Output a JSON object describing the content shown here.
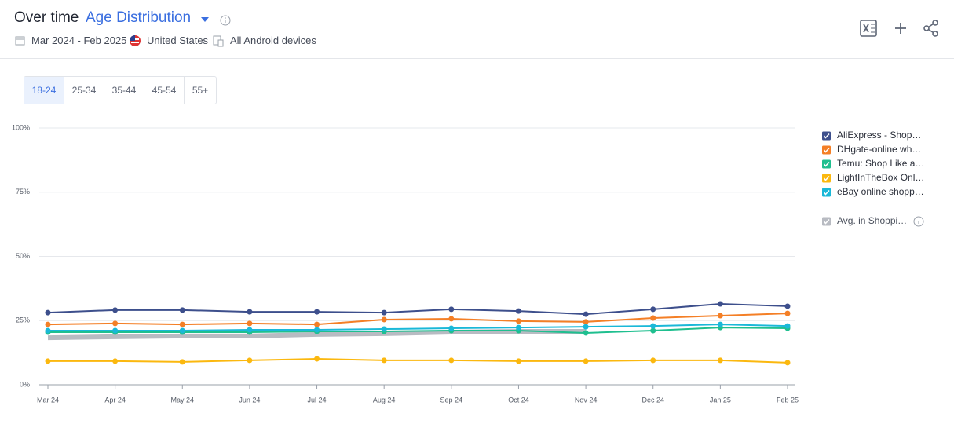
{
  "header": {
    "title": "Over time",
    "metric": "Age Distribution",
    "date_range": "Mar 2024 - Feb 2025",
    "country": "United States",
    "devices": "All Android devices"
  },
  "tabs": [
    "18-24",
    "25-34",
    "35-44",
    "45-54",
    "55+"
  ],
  "chart_data": {
    "type": "line",
    "categories": [
      "Mar 24",
      "Apr 24",
      "May 24",
      "Jun 24",
      "Jul 24",
      "Aug 24",
      "Sep 24",
      "Oct 24",
      "Nov 24",
      "Dec 24",
      "Jan 25",
      "Feb 25"
    ],
    "ylim": [
      0,
      100
    ],
    "yticks": [
      {
        "value": 0,
        "label": "0%"
      },
      {
        "value": 25,
        "label": "25%"
      },
      {
        "value": 50,
        "label": "50%"
      },
      {
        "value": 75,
        "label": "75%"
      },
      {
        "value": 100,
        "label": "100%"
      }
    ],
    "grid": true,
    "legend": "right",
    "series": [
      {
        "name": "AliExpress - Shop…",
        "color": "#3d4f8c",
        "values": [
          28.1,
          29.1,
          29.1,
          28.4,
          28.4,
          28.1,
          29.4,
          28.7,
          27.5,
          29.4,
          31.5,
          30.6
        ]
      },
      {
        "name": "DHgate-online wh…",
        "color": "#f47f26",
        "values": [
          23.5,
          23.9,
          23.5,
          23.9,
          23.5,
          25.4,
          25.7,
          24.8,
          24.5,
          26.0,
          26.9,
          27.8
        ]
      },
      {
        "name": "Temu: Shop Like a…",
        "color": "#1fbf8f",
        "values": [
          20.5,
          20.5,
          20.5,
          20.5,
          20.8,
          20.8,
          21.1,
          21.1,
          20.2,
          21.1,
          22.3,
          22.0
        ]
      },
      {
        "name": "LightInTheBox Onl…",
        "color": "#fbb80f",
        "values": [
          9.2,
          9.2,
          8.9,
          9.5,
          10.1,
          9.5,
          9.5,
          9.2,
          9.2,
          9.5,
          9.5,
          8.6
        ]
      },
      {
        "name": "eBay online shopp…",
        "color": "#1ab8d8",
        "values": [
          21.1,
          21.1,
          21.1,
          21.4,
          21.4,
          21.7,
          22.0,
          22.3,
          22.6,
          22.9,
          23.5,
          22.9
        ]
      },
      {
        "name": "Avg. in Shoppi…",
        "color": "#b8bbc2",
        "values": [
          18.3,
          18.7,
          19.0,
          19.0,
          19.6,
          19.9,
          20.5,
          20.8,
          20.8,
          null,
          null,
          null
        ]
      }
    ]
  }
}
